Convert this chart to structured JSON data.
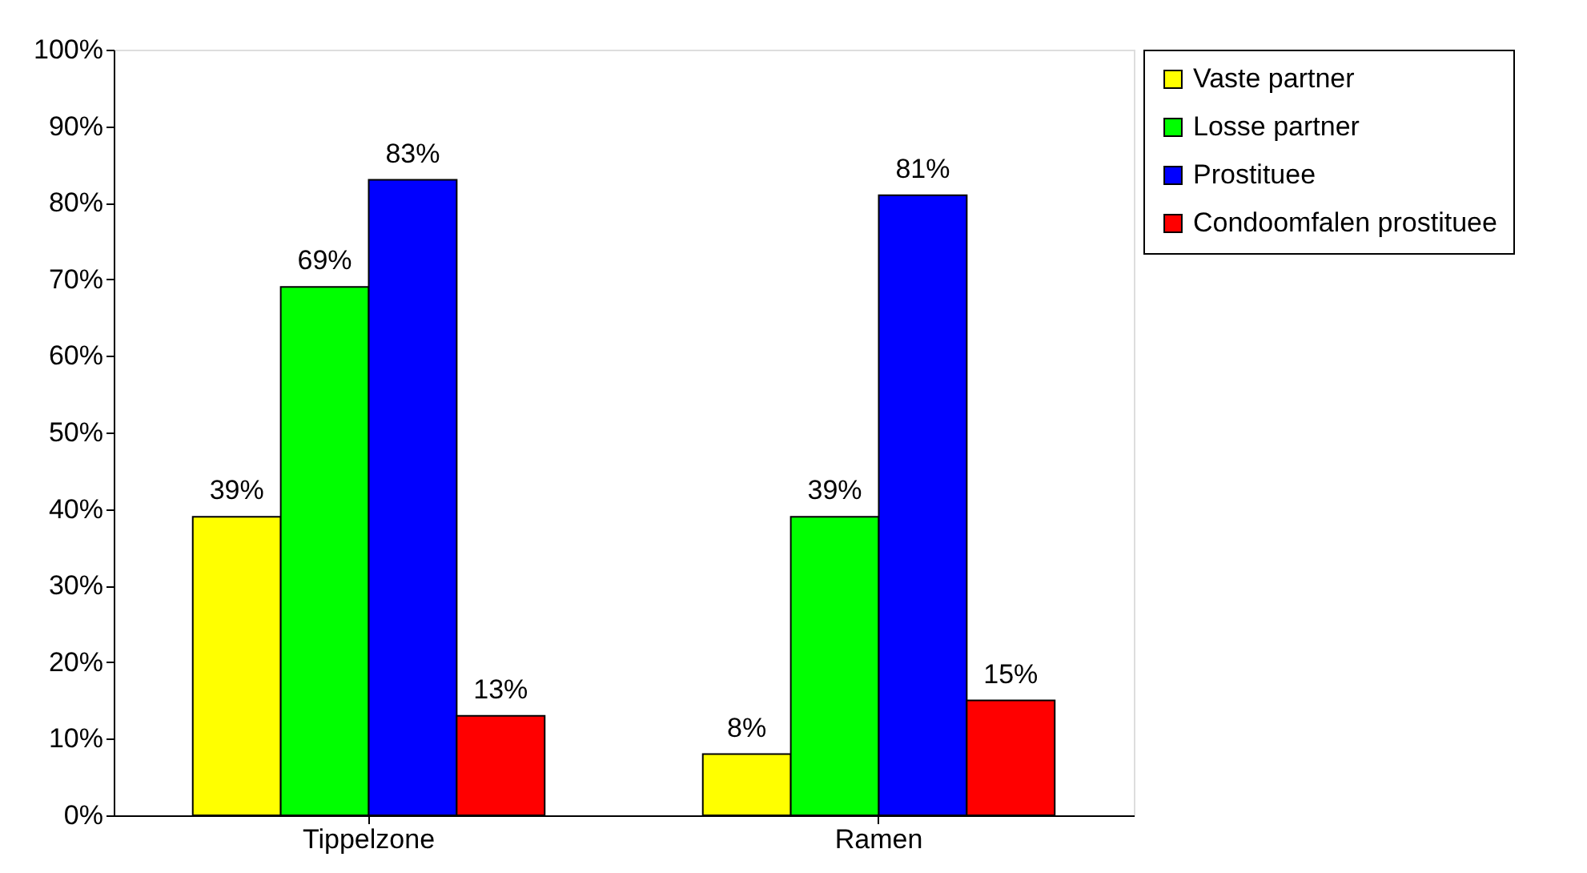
{
  "chart_data": {
    "type": "bar",
    "categories": [
      "Tippelzone",
      "Ramen"
    ],
    "series": [
      {
        "name": "Vaste partner",
        "color": "#ffff00",
        "values": [
          39,
          8
        ],
        "value_labels": [
          "39%",
          "8%"
        ]
      },
      {
        "name": "Losse partner",
        "color": "#00ff00",
        "values": [
          69,
          39
        ],
        "value_labels": [
          "69%",
          "39%"
        ]
      },
      {
        "name": "Prostituee",
        "color": "#0000ff",
        "values": [
          83,
          81
        ],
        "value_labels": [
          "83%",
          "81%"
        ]
      },
      {
        "name": "Condoomfalen prostituee",
        "color": "#ff0000",
        "values": [
          13,
          15
        ],
        "value_labels": [
          "13%",
          "15%"
        ]
      }
    ],
    "ylim": [
      0,
      100
    ],
    "yticks": [
      {
        "value": 0,
        "label": "0%"
      },
      {
        "value": 10,
        "label": "10%"
      },
      {
        "value": 20,
        "label": "20%"
      },
      {
        "value": 30,
        "label": "30%"
      },
      {
        "value": 40,
        "label": "40%"
      },
      {
        "value": 50,
        "label": "50%"
      },
      {
        "value": 60,
        "label": "60%"
      },
      {
        "value": 70,
        "label": "70%"
      },
      {
        "value": 80,
        "label": "80%"
      },
      {
        "value": 90,
        "label": "90%"
      },
      {
        "value": 100,
        "label": "100%"
      }
    ],
    "grid": false,
    "legend": "top right"
  }
}
